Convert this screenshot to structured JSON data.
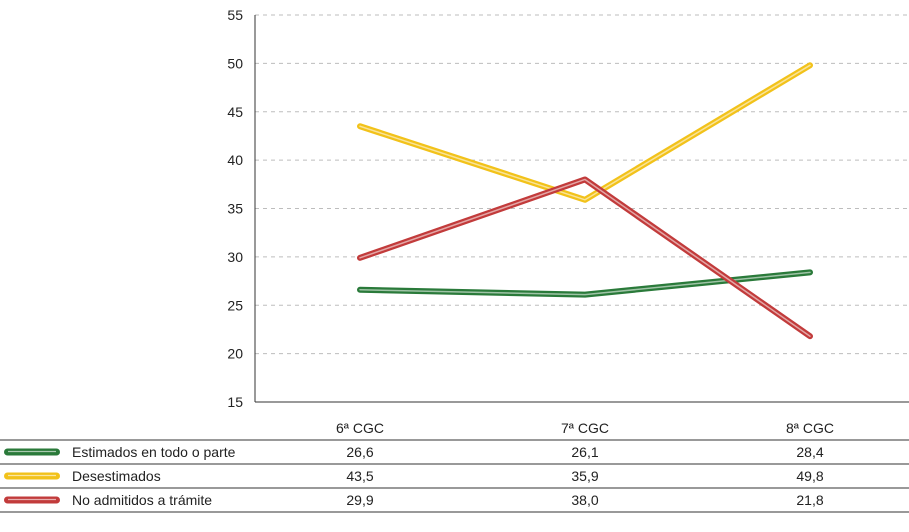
{
  "chart_data": {
    "type": "line",
    "categories": [
      "6ª CGC",
      "7ª CGC",
      "8ª CGC"
    ],
    "ylim": [
      15,
      55
    ],
    "yticks": [
      15,
      20,
      25,
      30,
      35,
      40,
      45,
      50,
      55
    ],
    "grid": true,
    "legend": "table-below",
    "series": [
      {
        "name": "Estimados en todo o parte",
        "values": [
          26.6,
          26.1,
          28.4
        ],
        "labels": [
          "26,6",
          "26,1",
          "28,4"
        ],
        "color": "#2a7a3a"
      },
      {
        "name": "Desestimados",
        "values": [
          43.5,
          35.9,
          49.8
        ],
        "labels": [
          "43,5",
          "35,9",
          "49,8"
        ],
        "color": "#f2c21a"
      },
      {
        "name": "No admitidos a trámite",
        "values": [
          29.9,
          38.0,
          21.8
        ],
        "labels": [
          "29,9",
          "38,0",
          "21,8"
        ],
        "color": "#c23b3b"
      }
    ]
  }
}
